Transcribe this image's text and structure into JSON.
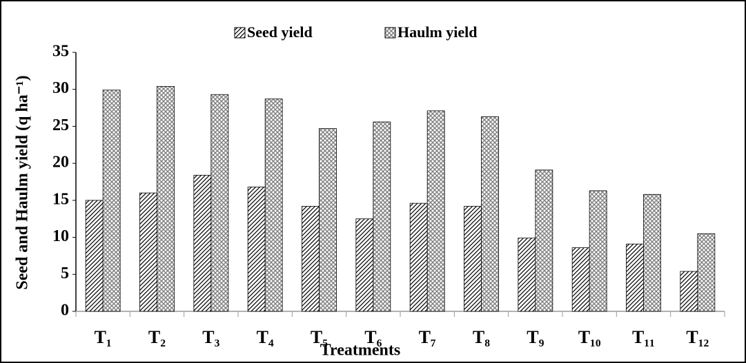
{
  "chart_data": {
    "type": "bar",
    "xlabel": "Treatments",
    "ylabel": "Seed and Haulm  yield (q ha⁻¹)",
    "categories": [
      "T₁",
      "T₂",
      "T₃",
      "T₄",
      "T₅",
      "T₆",
      "T₇",
      "T₈",
      "T₉",
      "T₁₀",
      "T₁₁",
      "T₁₂"
    ],
    "series": [
      {
        "name": "Seed yield",
        "color": "#000000",
        "pattern": "diagonal",
        "values": [
          15.0,
          16.0,
          18.4,
          16.8,
          14.2,
          12.5,
          14.6,
          14.2,
          9.9,
          8.6,
          9.1,
          5.4
        ]
      },
      {
        "name": "Haulm yield",
        "color": "#808080",
        "pattern": "crosshatch",
        "values": [
          29.9,
          30.4,
          29.3,
          28.7,
          24.7,
          25.6,
          27.1,
          26.3,
          19.1,
          16.3,
          15.8,
          10.5
        ]
      }
    ],
    "ylim": [
      0,
      35
    ],
    "yticks": [
      0,
      5,
      10,
      15,
      20,
      25,
      30,
      35
    ],
    "grid": false,
    "legend": "top"
  }
}
